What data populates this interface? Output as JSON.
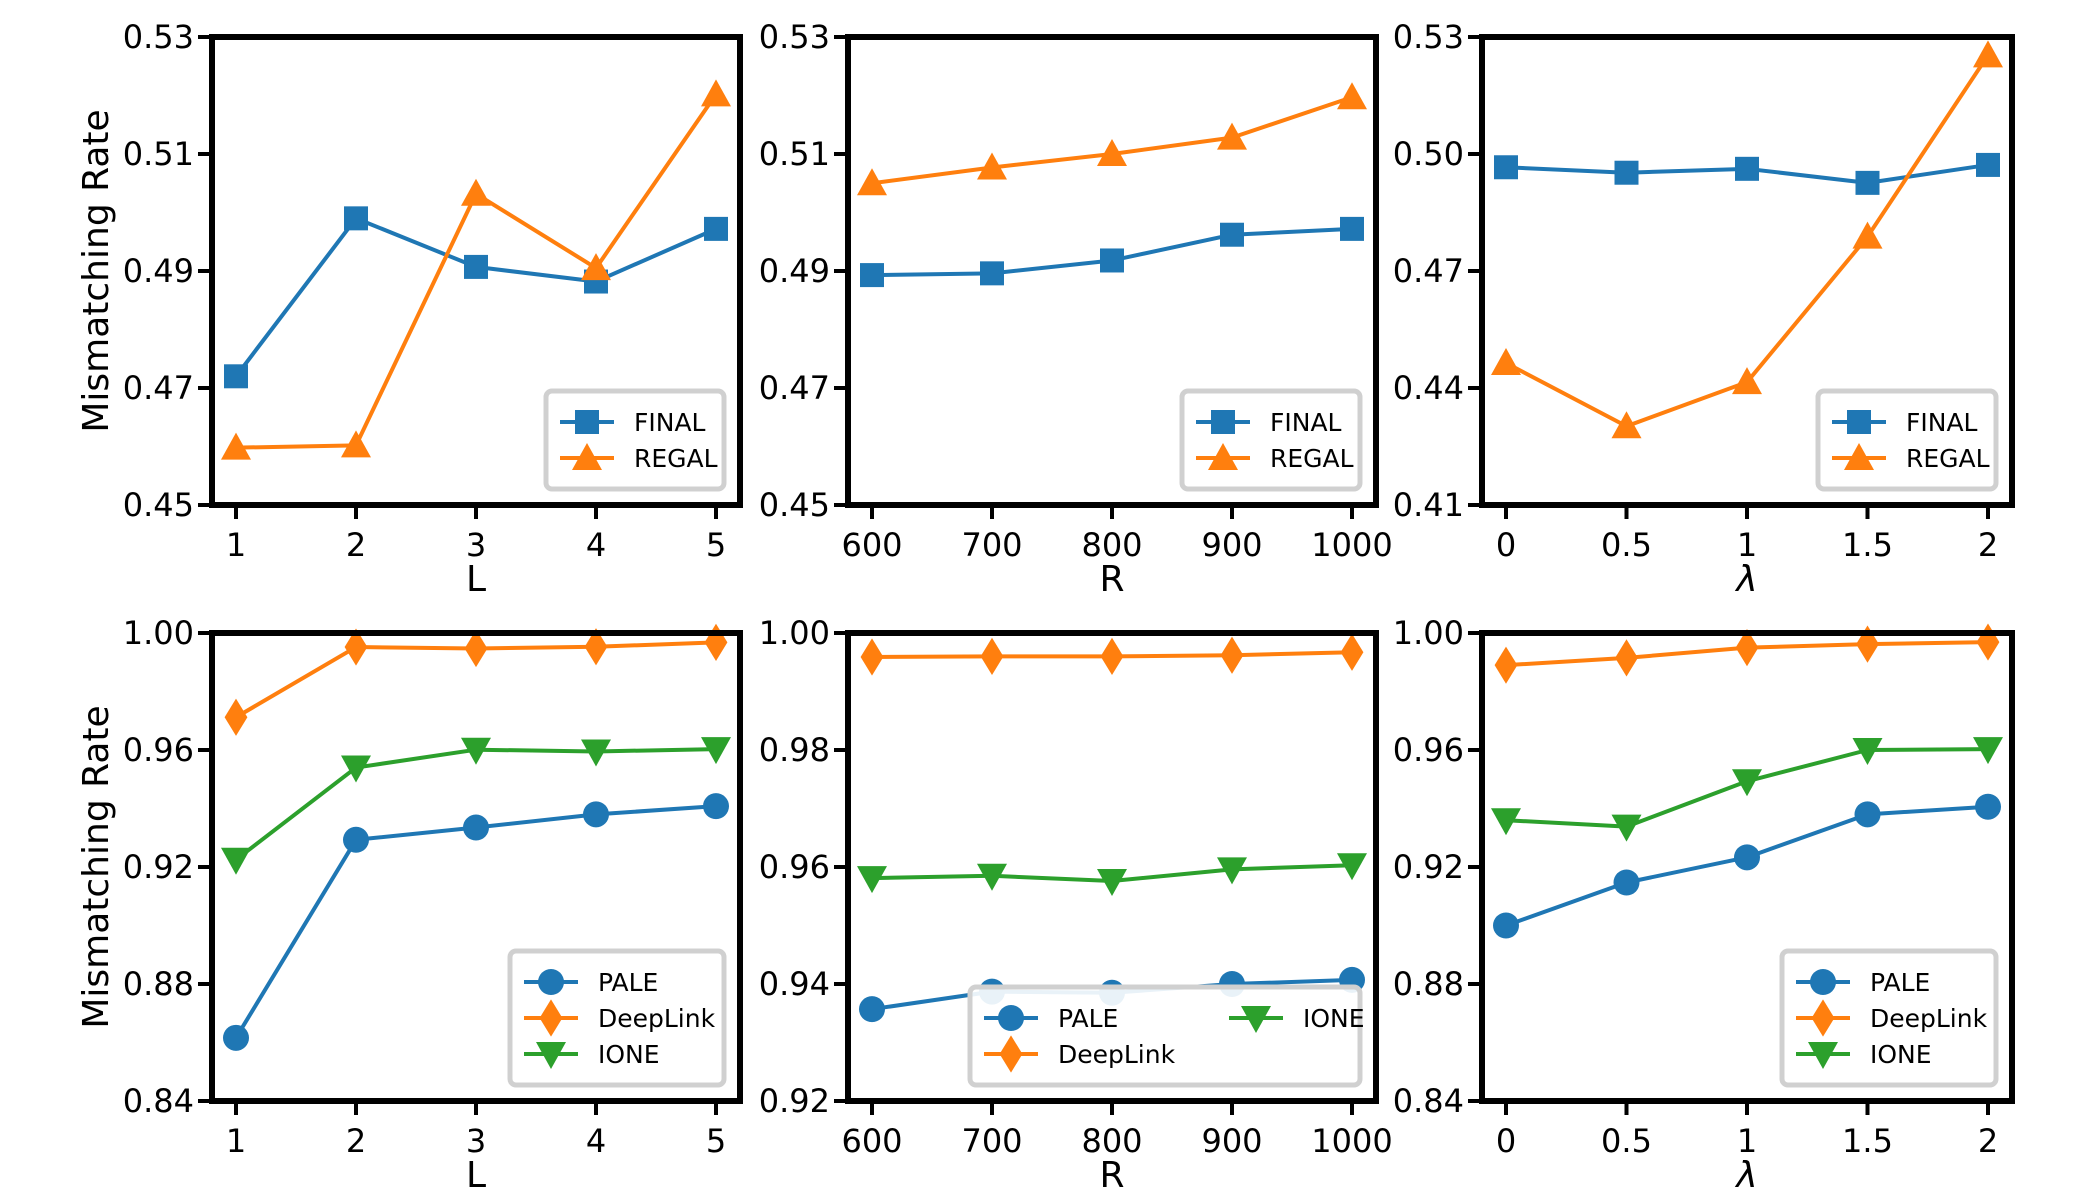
{
  "chart_data": [
    {
      "type": "line",
      "xlabel": "L",
      "ylabel": "Mismatching Rate",
      "x": [
        1,
        2,
        3,
        4,
        5
      ],
      "xticks": [
        "1",
        "2",
        "3",
        "4",
        "5"
      ],
      "ylim": [
        0.45,
        0.53
      ],
      "yticks": [
        "0.45",
        "0.47",
        "0.49",
        "0.51",
        "0.53"
      ],
      "legend": "lower-right",
      "series": [
        {
          "name": "FINAL",
          "color": "#1f77b4",
          "marker": "square",
          "values": [
            0.472,
            0.499,
            0.4907,
            0.4882,
            0.4972
          ]
        },
        {
          "name": "REGAL",
          "color": "#ff7f0e",
          "marker": "triangle-up",
          "values": [
            0.4598,
            0.4602,
            0.5032,
            0.4905,
            0.5202
          ]
        }
      ]
    },
    {
      "type": "line",
      "xlabel": "R",
      "ylabel": "",
      "x": [
        600,
        700,
        800,
        900,
        1000
      ],
      "xticks": [
        "600",
        "700",
        "800",
        "900",
        "1000"
      ],
      "ylim": [
        0.45,
        0.53
      ],
      "yticks": [
        "0.45",
        "0.47",
        "0.49",
        "0.51",
        "0.53"
      ],
      "legend": "lower-right",
      "series": [
        {
          "name": "FINAL",
          "color": "#1f77b4",
          "marker": "square",
          "values": [
            0.4893,
            0.4896,
            0.4918,
            0.4962,
            0.4972
          ]
        },
        {
          "name": "REGAL",
          "color": "#ff7f0e",
          "marker": "triangle-up",
          "values": [
            0.505,
            0.5077,
            0.51,
            0.5128,
            0.5197
          ]
        }
      ]
    },
    {
      "type": "line",
      "xlabel": "λ",
      "ylabel": "",
      "x": [
        0,
        0.5,
        1,
        1.5,
        2
      ],
      "xticks": [
        "0",
        "0.5",
        "1",
        "1.5",
        "2"
      ],
      "ylim": [
        0.41,
        0.53
      ],
      "yticks": [
        "0.41",
        "0.44",
        "0.47",
        "0.50",
        "0.53"
      ],
      "legend": "lower-right",
      "series": [
        {
          "name": "FINAL",
          "color": "#1f77b4",
          "marker": "square",
          "values": [
            0.4966,
            0.4952,
            0.4962,
            0.4926,
            0.4972
          ]
        },
        {
          "name": "REGAL",
          "color": "#ff7f0e",
          "marker": "triangle-up",
          "values": [
            0.4464,
            0.4302,
            0.4415,
            0.4788,
            0.5253
          ]
        }
      ]
    },
    {
      "type": "line",
      "xlabel": "L",
      "ylabel": "Mismatching Rate",
      "x": [
        1,
        2,
        3,
        4,
        5
      ],
      "xticks": [
        "1",
        "2",
        "3",
        "4",
        "5"
      ],
      "ylim": [
        0.84,
        1.0
      ],
      "yticks": [
        "0.84",
        "0.88",
        "0.92",
        "0.96",
        "1.00"
      ],
      "legend": "lower-right",
      "series": [
        {
          "name": "PALE",
          "color": "#1f77b4",
          "marker": "circle",
          "values": [
            0.8616,
            0.9293,
            0.9335,
            0.938,
            0.9408
          ]
        },
        {
          "name": "DeepLink",
          "color": "#ff7f0e",
          "marker": "diamond",
          "values": [
            0.9712,
            0.9952,
            0.9947,
            0.9953,
            0.9968
          ]
        },
        {
          "name": "IONE",
          "color": "#2ca02c",
          "marker": "triangle-down",
          "values": [
            0.9225,
            0.954,
            0.9601,
            0.9595,
            0.9603
          ]
        }
      ]
    },
    {
      "type": "line",
      "xlabel": "R",
      "ylabel": "",
      "x": [
        600,
        700,
        800,
        900,
        1000
      ],
      "xticks": [
        "600",
        "700",
        "800",
        "900",
        "1000"
      ],
      "ylim": [
        0.92,
        1.0
      ],
      "yticks": [
        "0.92",
        "0.94",
        "0.96",
        "0.98",
        "1.00"
      ],
      "legend": "lower-right-two-columns",
      "series": [
        {
          "name": "PALE",
          "color": "#1f77b4",
          "marker": "circle",
          "values": [
            0.9357,
            0.9387,
            0.9385,
            0.94,
            0.9407
          ]
        },
        {
          "name": "DeepLink",
          "color": "#ff7f0e",
          "marker": "diamond",
          "values": [
            0.9959,
            0.996,
            0.996,
            0.9962,
            0.9967
          ]
        },
        {
          "name": "IONE",
          "color": "#2ca02c",
          "marker": "triangle-down",
          "values": [
            0.9581,
            0.9585,
            0.9576,
            0.9596,
            0.9603
          ]
        }
      ]
    },
    {
      "type": "line",
      "xlabel": "λ",
      "ylabel": "",
      "x": [
        0,
        0.5,
        1,
        1.5,
        2
      ],
      "xticks": [
        "0",
        "0.5",
        "1",
        "1.5",
        "2"
      ],
      "ylim": [
        0.84,
        1.0
      ],
      "yticks": [
        "0.84",
        "0.88",
        "0.92",
        "0.96",
        "1.00"
      ],
      "legend": "lower-right",
      "series": [
        {
          "name": "PALE",
          "color": "#1f77b4",
          "marker": "circle",
          "values": [
            0.9,
            0.9147,
            0.9233,
            0.938,
            0.9406
          ]
        },
        {
          "name": "DeepLink",
          "color": "#ff7f0e",
          "marker": "diamond",
          "values": [
            0.989,
            0.9915,
            0.995,
            0.9962,
            0.9969
          ]
        },
        {
          "name": "IONE",
          "color": "#2ca02c",
          "marker": "triangle-down",
          "values": [
            0.936,
            0.9338,
            0.9493,
            0.96,
            0.9603
          ]
        }
      ]
    }
  ]
}
